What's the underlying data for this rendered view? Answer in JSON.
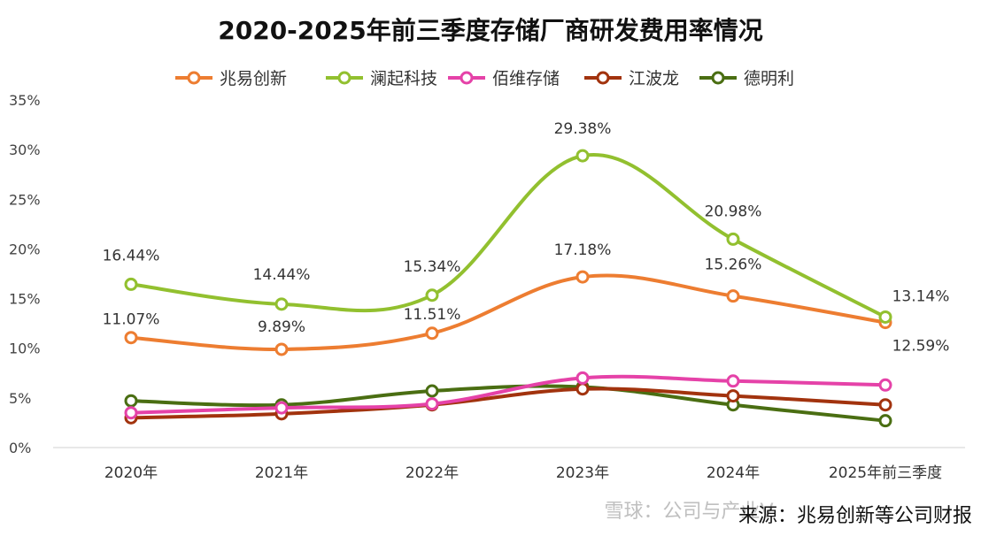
{
  "chart_data": {
    "type": "line",
    "title": "2020-2025年前三季度存储厂商研发费用率情况",
    "categories": [
      "2020年",
      "2021年",
      "2022年",
      "2023年",
      "2024年",
      "2025年前三季度"
    ],
    "yticks": [
      "0%",
      "5%",
      "10%",
      "15%",
      "20%",
      "25%",
      "30%",
      "35%"
    ],
    "ylim": [
      0,
      35
    ],
    "legend_position": "top-center",
    "series": [
      {
        "name": "兆易创新",
        "color": "#ED7D31",
        "values": [
          11.07,
          9.89,
          11.51,
          17.18,
          15.26,
          12.59
        ],
        "labels": [
          "11.07%",
          "9.89%",
          "11.51%",
          "17.18%",
          "15.26%",
          "12.59%"
        ]
      },
      {
        "name": "澜起科技",
        "color": "#92C02F",
        "values": [
          16.44,
          14.44,
          15.34,
          29.38,
          20.98,
          13.14
        ],
        "labels": [
          "16.44%",
          "14.44%",
          "15.34%",
          "29.38%",
          "20.98%",
          "13.14%"
        ]
      },
      {
        "name": "佰维存储",
        "color": "#E542A8",
        "values": [
          3.5,
          4.0,
          4.4,
          7.0,
          6.7,
          6.3
        ],
        "labels": []
      },
      {
        "name": "江波龙",
        "color": "#A2330E",
        "values": [
          3.0,
          3.4,
          4.3,
          5.9,
          5.2,
          4.3
        ],
        "labels": []
      },
      {
        "name": "德明利",
        "color": "#4A6E12",
        "values": [
          4.7,
          4.3,
          5.7,
          6.1,
          4.3,
          2.7
        ],
        "labels": []
      }
    ]
  },
  "footer": {
    "source": "来源：兆易创新等公司财报",
    "watermark": "雪球：公司与产业V"
  }
}
